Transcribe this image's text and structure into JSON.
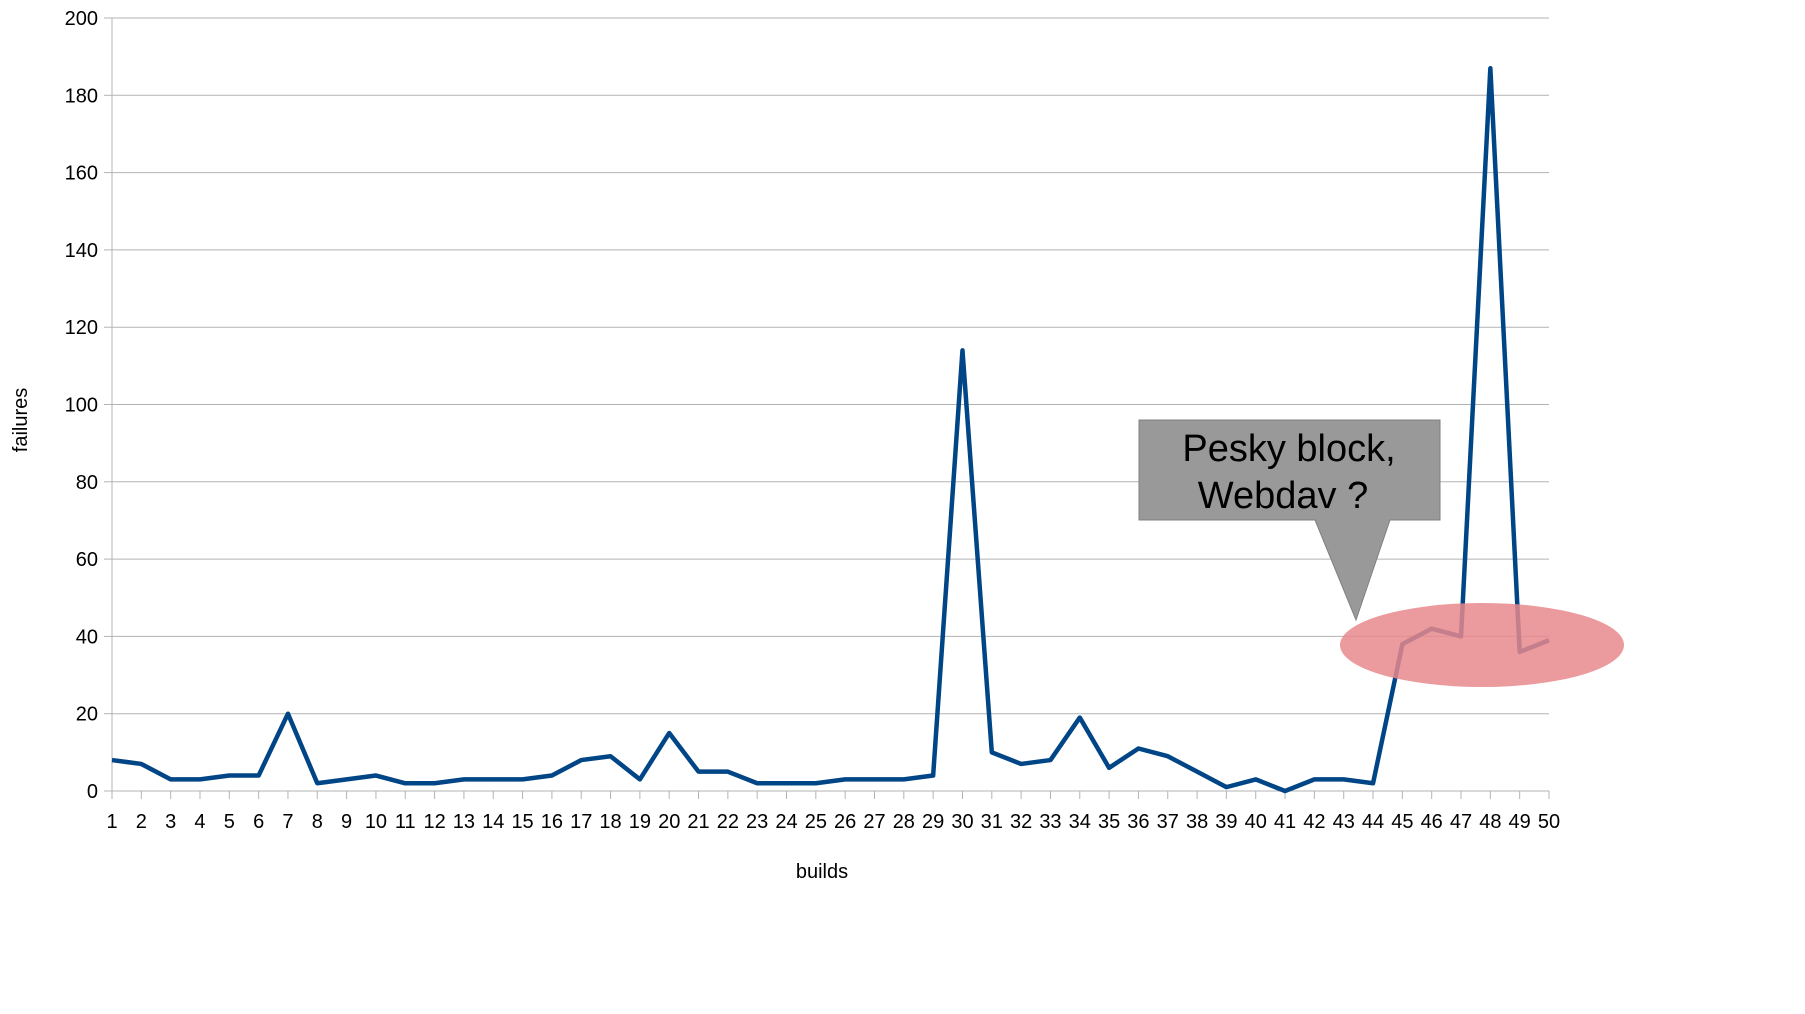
{
  "chart_data": {
    "type": "line",
    "xlabel": "builds",
    "ylabel": "failures",
    "ylim": [
      0,
      200
    ],
    "y_ticks": [
      0,
      20,
      40,
      60,
      80,
      100,
      120,
      140,
      160,
      180,
      200
    ],
    "grid": "horizontal",
    "legend": "none",
    "categories": [
      "1",
      "2",
      "3",
      "4",
      "5",
      "6",
      "7",
      "8",
      "9",
      "10",
      "11",
      "12",
      "13",
      "14",
      "15",
      "16",
      "17",
      "18",
      "19",
      "20",
      "21",
      "22",
      "23",
      "24",
      "25",
      "26",
      "27",
      "28",
      "29",
      "30",
      "31",
      "32",
      "33",
      "34",
      "35",
      "36",
      "37",
      "38",
      "39",
      "40",
      "41",
      "42",
      "43",
      "44",
      "45",
      "46",
      "47",
      "48",
      "49",
      "50"
    ],
    "series": [
      {
        "color": "#004586",
        "values": [
          8,
          7,
          3,
          3,
          4,
          4,
          20,
          2,
          3,
          4,
          2,
          2,
          3,
          3,
          3,
          4,
          8,
          9,
          3,
          15,
          5,
          5,
          2,
          2,
          2,
          3,
          3,
          3,
          4,
          114,
          10,
          7,
          8,
          19,
          6,
          11,
          9,
          5,
          1,
          3,
          0,
          3,
          3,
          2,
          38,
          42,
          40,
          187,
          36,
          39
        ]
      }
    ],
    "annotations": [
      {
        "type": "callout",
        "lines": [
          "Pesky block,",
          "Webdav ?"
        ],
        "fill": "#999999",
        "highlight_fill": "#e8888c",
        "highlight_range": [
          45,
          50
        ]
      }
    ]
  }
}
